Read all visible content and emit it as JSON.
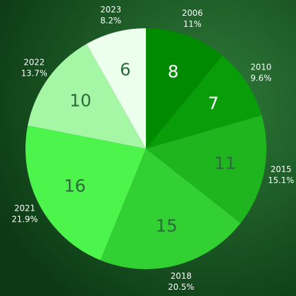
{
  "chart_data": {
    "type": "pie",
    "categories": [
      "2006",
      "2010",
      "2015",
      "2018",
      "2021",
      "2022",
      "2023"
    ],
    "values": [
      8,
      7,
      11,
      15,
      16,
      10,
      6
    ],
    "percent_labels": [
      "11%",
      "9.6%",
      "15.1%",
      "20.5%",
      "21.9%",
      "13.7%",
      "8.2%"
    ],
    "colors": [
      "#008a00",
      "#0a9d0a",
      "#1fb51f",
      "#33d033",
      "#4cf44c",
      "#a5f7a5",
      "#ecffec"
    ],
    "value_label_colors": [
      "#ffffff",
      "#ffffff",
      "#2d6b3c",
      "#2d6b3c",
      "#2d6b3c",
      "#2d6b3c",
      "#2d6b3c"
    ]
  }
}
